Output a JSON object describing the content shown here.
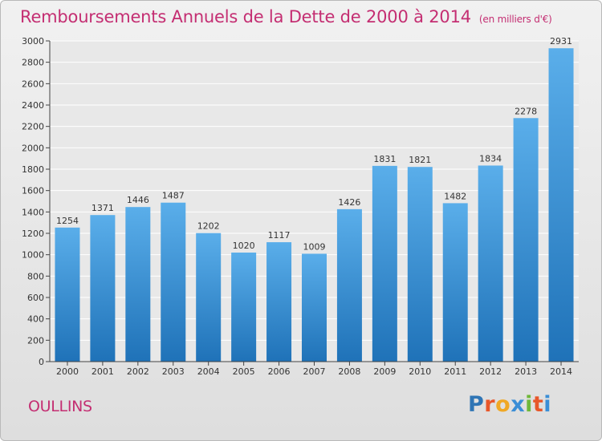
{
  "header": {
    "title": "Remboursements Annuels de la Dette de 2000 à 2014",
    "unit": "(en milliers d'€)"
  },
  "footer": {
    "city": "OULLINS",
    "logo_letters": [
      "P",
      "r",
      "o",
      "x",
      "i",
      "t",
      "i"
    ],
    "logo_colors": [
      "#2f75b5",
      "#e8572a",
      "#f0a825",
      "#3b8ed6",
      "#6fb83a",
      "#e8572a",
      "#3b8ed6"
    ]
  },
  "colors": {
    "title": "#c42e72",
    "bar_top": "#5aaeea",
    "bar_bottom": "#1f72b8",
    "background": "#e8e8e8",
    "grid": "#ffffff"
  },
  "chart_data": {
    "type": "bar",
    "categories": [
      "2000",
      "2001",
      "2002",
      "2003",
      "2004",
      "2005",
      "2006",
      "2007",
      "2008",
      "2009",
      "2010",
      "2011",
      "2012",
      "2013",
      "2014"
    ],
    "values": [
      1254,
      1371,
      1446,
      1487,
      1202,
      1020,
      1117,
      1009,
      1426,
      1831,
      1821,
      1482,
      1834,
      2278,
      2931
    ],
    "ylim": [
      0,
      3000
    ],
    "yticks": [
      0,
      200,
      400,
      600,
      800,
      1000,
      1200,
      1400,
      1600,
      1800,
      2000,
      2200,
      2400,
      2600,
      2800,
      3000
    ],
    "grid": true,
    "data_labels": true
  }
}
